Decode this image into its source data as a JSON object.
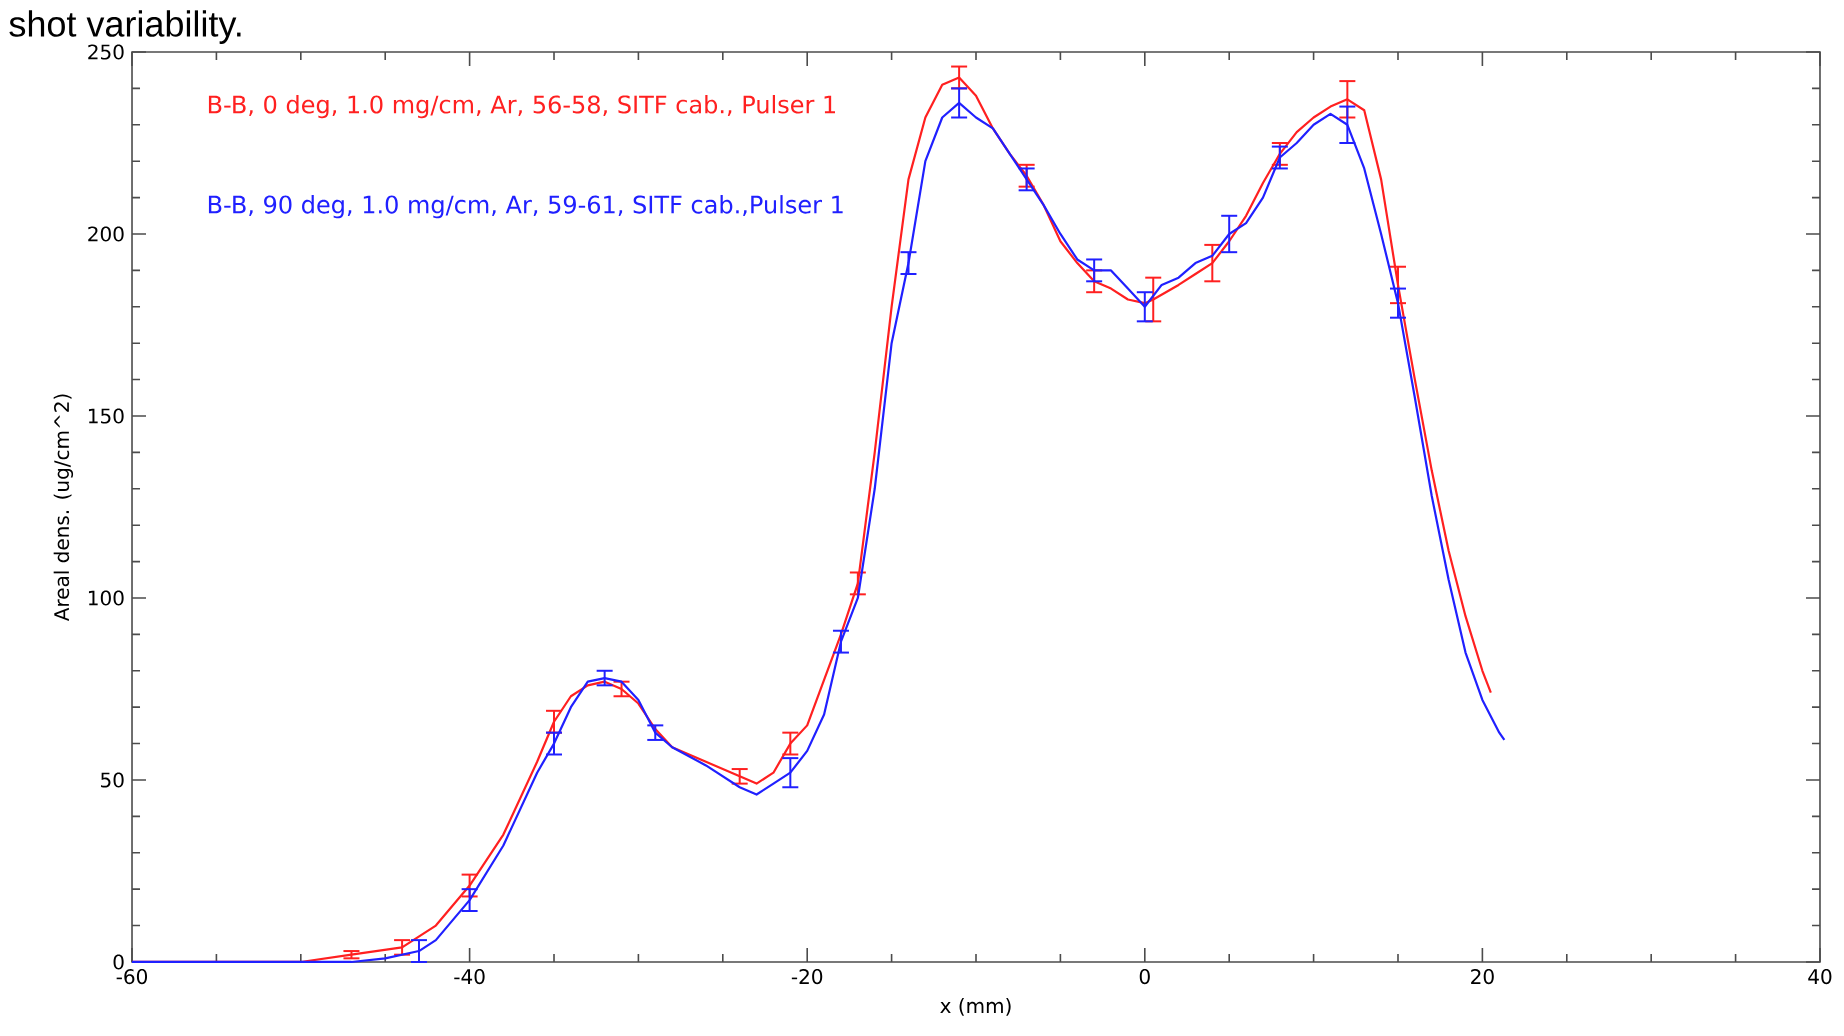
{
  "chart_data": {
    "type": "line",
    "xlabel": "x (mm)",
    "ylabel": "Areal dens. (ug/cm^2)",
    "annotations": [
      "shot variability."
    ],
    "xlim": [
      -60,
      40
    ],
    "xticks": [
      -60,
      -40,
      -20,
      0,
      20,
      40
    ],
    "ylim": [
      0,
      250
    ],
    "yticks": [
      0,
      50,
      100,
      150,
      200,
      250
    ],
    "grid": false,
    "marker": "none",
    "line_style": "solid",
    "series": [
      {
        "name": "B-B, 0 deg, 1.0 mg/cm, Ar, 56-58, SITF cab., Pulser 1",
        "color": "#ff2020",
        "x": [
          -60,
          -55,
          -50,
          -47,
          -44,
          -42,
          -40,
          -38,
          -36,
          -35,
          -34,
          -33,
          -32,
          -31,
          -30,
          -29,
          -28,
          -26,
          -24,
          -23,
          -22,
          -21,
          -20,
          -18,
          -17,
          -16,
          -15,
          -14,
          -13,
          -12,
          -11,
          -10,
          -9,
          -8,
          -7,
          -6,
          -5,
          -4,
          -3,
          -2,
          -1,
          0,
          0.5,
          2,
          3,
          4,
          5,
          6,
          7,
          8,
          9,
          10,
          11,
          12,
          13,
          14,
          15,
          16,
          17,
          18,
          19,
          20,
          20.5
        ],
        "values": [
          0,
          0,
          0,
          2,
          4,
          10,
          21,
          35,
          55,
          66,
          73,
          76,
          77,
          75,
          71,
          64,
          59,
          55,
          51,
          49,
          52,
          60,
          65,
          90,
          104,
          140,
          180,
          215,
          232,
          241,
          243,
          238,
          229,
          222,
          216,
          208,
          198,
          192,
          187,
          185,
          182,
          181,
          182,
          186,
          189,
          192,
          198,
          205,
          214,
          222,
          228,
          232,
          235,
          237,
          234,
          215,
          186,
          160,
          135,
          113,
          95,
          80,
          74
        ],
        "errors": [
          null,
          null,
          null,
          1,
          2,
          null,
          3,
          null,
          null,
          3,
          null,
          null,
          null,
          2,
          null,
          null,
          null,
          null,
          2,
          null,
          null,
          3,
          null,
          null,
          3,
          null,
          null,
          null,
          null,
          null,
          3,
          null,
          null,
          null,
          3,
          null,
          null,
          null,
          3,
          null,
          null,
          null,
          6,
          null,
          null,
          5,
          null,
          null,
          null,
          3,
          null,
          null,
          null,
          5,
          null,
          null,
          5,
          null,
          null,
          null,
          null,
          null,
          null
        ]
      },
      {
        "name": "B-B, 90 deg, 1.0 mg/cm, Ar, 59-61, SITF cab.,Pulser 1",
        "color": "#2020ff",
        "x": [
          -60,
          -50,
          -47,
          -45,
          -43,
          -42,
          -40,
          -38,
          -36,
          -35,
          -34,
          -33,
          -32,
          -31,
          -30,
          -29,
          -28,
          -26,
          -24,
          -23,
          -22,
          -21,
          -20,
          -19,
          -18,
          -17,
          -16,
          -15,
          -14,
          -13,
          -12,
          -11,
          -10,
          -9,
          -8,
          -7,
          -6,
          -5,
          -4,
          -3,
          -2,
          -1,
          0,
          1,
          2,
          3,
          4,
          5,
          6,
          7,
          8,
          9,
          10,
          11,
          12,
          13,
          14,
          15,
          16,
          17,
          18,
          19,
          20,
          21,
          21.3
        ],
        "values": [
          0,
          0,
          0,
          1,
          3,
          6,
          17,
          32,
          52,
          60,
          70,
          77,
          78,
          77,
          72,
          63,
          59,
          54,
          48,
          46,
          49,
          52,
          58,
          68,
          88,
          100,
          130,
          170,
          192,
          220,
          232,
          236,
          232,
          229,
          222,
          215,
          208,
          200,
          193,
          190,
          190,
          185,
          180,
          186,
          188,
          192,
          194,
          200,
          203,
          210,
          221,
          225,
          230,
          233,
          230,
          218,
          200,
          181,
          155,
          128,
          105,
          85,
          72,
          63,
          61
        ],
        "errors": [
          null,
          null,
          null,
          null,
          3,
          null,
          3,
          null,
          null,
          3,
          null,
          null,
          2,
          null,
          null,
          2,
          null,
          null,
          null,
          null,
          null,
          4,
          null,
          null,
          3,
          null,
          null,
          null,
          3,
          null,
          null,
          4,
          null,
          null,
          null,
          3,
          null,
          null,
          null,
          3,
          null,
          null,
          4,
          null,
          null,
          null,
          null,
          5,
          null,
          null,
          3,
          null,
          null,
          null,
          5,
          null,
          null,
          4,
          null,
          null,
          null,
          null,
          null,
          null,
          null
        ]
      }
    ]
  }
}
